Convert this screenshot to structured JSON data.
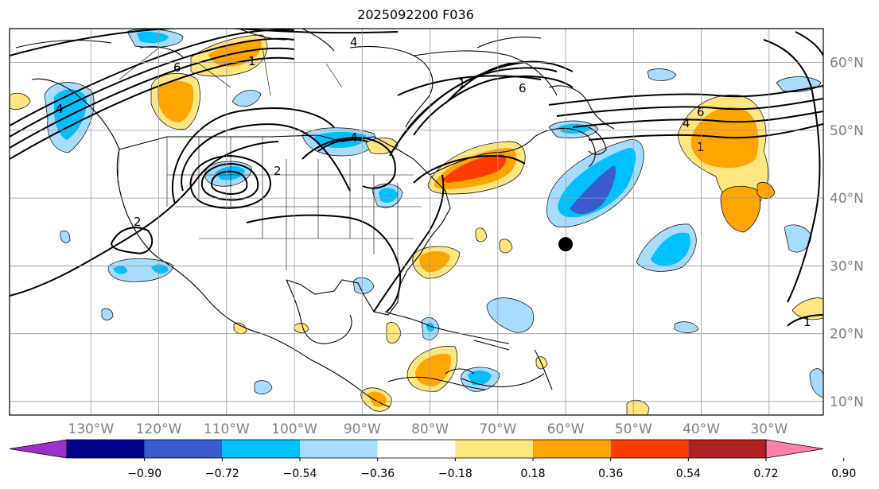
{
  "title": "2025092200 F036",
  "map": {
    "extent": {
      "lon": [
        -142,
        -22
      ],
      "lat": [
        8,
        65
      ]
    },
    "lon_ticks": [
      {
        "value": -130,
        "label": "130°W"
      },
      {
        "value": -120,
        "label": "120°W"
      },
      {
        "value": -110,
        "label": "110°W"
      },
      {
        "value": -100,
        "label": "100°W"
      },
      {
        "value": -90,
        "label": "90°W"
      },
      {
        "value": -80,
        "label": "80°W"
      },
      {
        "value": -70,
        "label": "70°W"
      },
      {
        "value": -60,
        "label": "60°W"
      },
      {
        "value": -50,
        "label": "50°W"
      },
      {
        "value": -40,
        "label": "40°W"
      },
      {
        "value": -30,
        "label": "30°W"
      }
    ],
    "lat_ticks": [
      {
        "value": 60,
        "label": "60°N"
      },
      {
        "value": 50,
        "label": "50°N"
      },
      {
        "value": 40,
        "label": "40°N"
      },
      {
        "value": 30,
        "label": "30°N"
      },
      {
        "value": 20,
        "label": "20°N"
      },
      {
        "value": 10,
        "label": "10°N"
      }
    ],
    "grid": true,
    "marker": {
      "lon": -60,
      "lat": 33.2,
      "color": "#000000"
    }
  },
  "contour_labels": [
    "6",
    "4",
    "2",
    "1"
  ],
  "colorbar": {
    "ticks": [
      "−0.90",
      "−0.72",
      "−0.54",
      "−0.36",
      "−0.18",
      "0.18",
      "0.36",
      "0.54",
      "0.72",
      "0.90"
    ],
    "colors": [
      "#9932cc",
      "#00008b",
      "#3a5bd0",
      "#00bfff",
      "#a8dcff",
      "#ffffff",
      "#ffe680",
      "#ffa500",
      "#ff3c00",
      "#b22222",
      "#ff80a8"
    ],
    "extend": "both"
  }
}
